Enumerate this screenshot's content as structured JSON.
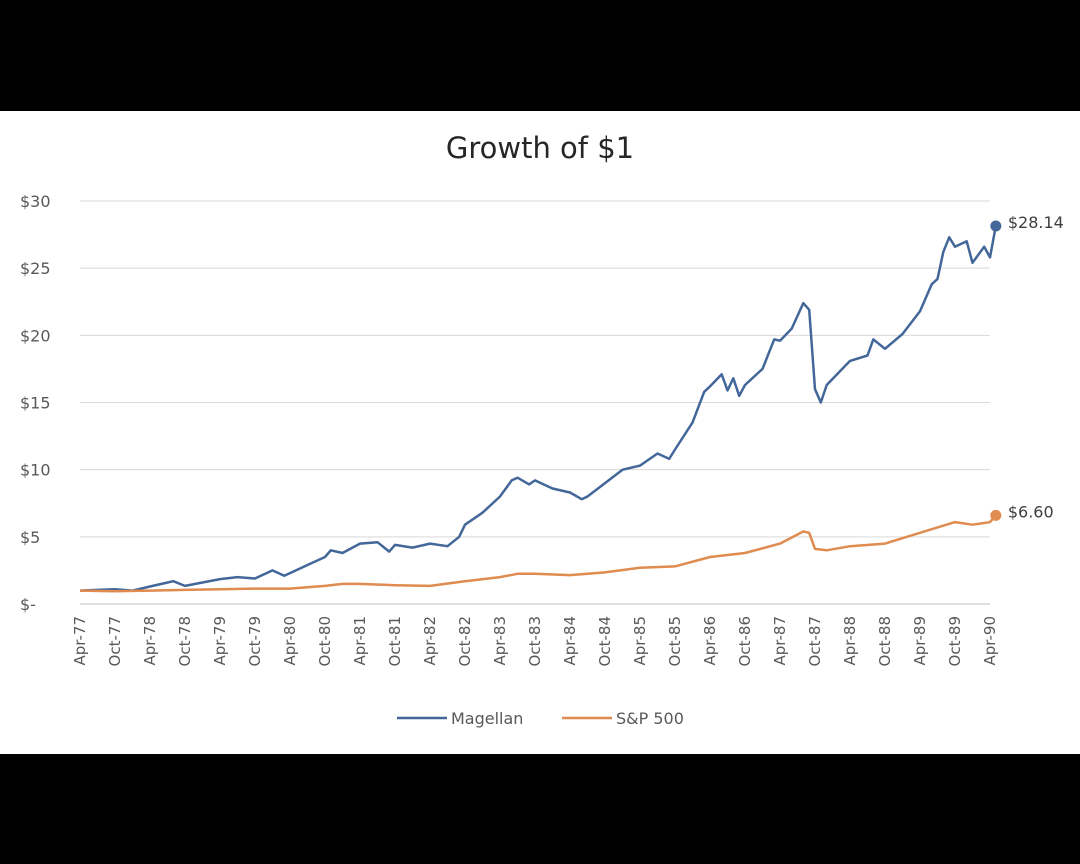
{
  "chart_data": {
    "type": "line",
    "title": "Growth of $1",
    "xlabel": "",
    "ylabel": "",
    "ylim": [
      0,
      30
    ],
    "yticks": [
      0,
      5,
      10,
      15,
      20,
      25,
      30
    ],
    "ytick_labels": [
      "$-",
      "$5",
      "$10",
      "$15",
      "$20",
      "$25",
      "$30"
    ],
    "x_tick_labels": [
      "Apr-77",
      "Oct-77",
      "Apr-78",
      "Oct-78",
      "Apr-79",
      "Oct-79",
      "Apr-80",
      "Oct-80",
      "Apr-81",
      "Oct-81",
      "Apr-82",
      "Oct-82",
      "Apr-83",
      "Oct-83",
      "Apr-84",
      "Oct-84",
      "Apr-85",
      "Oct-85",
      "Apr-86",
      "Oct-86",
      "Apr-87",
      "Oct-87",
      "Apr-88",
      "Oct-88",
      "Apr-89",
      "Oct-89",
      "Apr-90"
    ],
    "grid": "horizontal",
    "legend_position": "bottom",
    "series": [
      {
        "name": "Magellan",
        "color": "#44679a",
        "end_label": "$28.14",
        "points": [
          [
            "Apr-77",
            1.0
          ],
          [
            "Jul-77",
            1.05
          ],
          [
            "Oct-77",
            1.1
          ],
          [
            "Jan-78",
            1.0
          ],
          [
            "Apr-78",
            1.3
          ],
          [
            "Jul-78",
            1.6
          ],
          [
            "Aug-78",
            1.7
          ],
          [
            "Oct-78",
            1.35
          ],
          [
            "Jan-79",
            1.6
          ],
          [
            "Apr-79",
            1.85
          ],
          [
            "Jul-79",
            2.0
          ],
          [
            "Oct-79",
            1.9
          ],
          [
            "Jan-80",
            2.5
          ],
          [
            "Mar-80",
            2.1
          ],
          [
            "Apr-80",
            2.3
          ],
          [
            "Jul-80",
            2.9
          ],
          [
            "Oct-80",
            3.5
          ],
          [
            "Nov-80",
            4.0
          ],
          [
            "Jan-81",
            3.8
          ],
          [
            "Apr-81",
            4.5
          ],
          [
            "Jul-81",
            4.6
          ],
          [
            "Sep-81",
            3.9
          ],
          [
            "Oct-81",
            4.4
          ],
          [
            "Jan-82",
            4.2
          ],
          [
            "Apr-82",
            4.5
          ],
          [
            "Jul-82",
            4.3
          ],
          [
            "Sep-82",
            5.0
          ],
          [
            "Oct-82",
            5.9
          ],
          [
            "Jan-83",
            6.8
          ],
          [
            "Apr-83",
            8.0
          ],
          [
            "Jun-83",
            9.2
          ],
          [
            "Jul-83",
            9.4
          ],
          [
            "Sep-83",
            8.9
          ],
          [
            "Oct-83",
            9.2
          ],
          [
            "Jan-84",
            8.6
          ],
          [
            "Apr-84",
            8.3
          ],
          [
            "Jun-84",
            7.8
          ],
          [
            "Jul-84",
            8.0
          ],
          [
            "Oct-84",
            9.0
          ],
          [
            "Jan-85",
            10.0
          ],
          [
            "Apr-85",
            10.3
          ],
          [
            "Jul-85",
            11.2
          ],
          [
            "Sep-85",
            10.8
          ],
          [
            "Oct-85",
            11.5
          ],
          [
            "Jan-86",
            13.5
          ],
          [
            "Mar-86",
            15.8
          ],
          [
            "Apr-86",
            16.2
          ],
          [
            "Jun-86",
            17.1
          ],
          [
            "Jul-86",
            15.9
          ],
          [
            "Aug-86",
            16.8
          ],
          [
            "Sep-86",
            15.5
          ],
          [
            "Oct-86",
            16.3
          ],
          [
            "Jan-87",
            17.5
          ],
          [
            "Mar-87",
            19.7
          ],
          [
            "Apr-87",
            19.6
          ],
          [
            "Jun-87",
            20.5
          ],
          [
            "Aug-87",
            22.4
          ],
          [
            "Sep-87",
            21.9
          ],
          [
            "Oct-87",
            16.0
          ],
          [
            "Nov-87",
            15.0
          ],
          [
            "Dec-87",
            16.3
          ],
          [
            "Apr-88",
            18.1
          ],
          [
            "Jul-88",
            18.5
          ],
          [
            "Aug-88",
            19.7
          ],
          [
            "Oct-88",
            19.0
          ],
          [
            "Jan-89",
            20.1
          ],
          [
            "Apr-89",
            21.8
          ],
          [
            "Jun-89",
            23.8
          ],
          [
            "Jul-89",
            24.2
          ],
          [
            "Aug-89",
            26.2
          ],
          [
            "Sep-89",
            27.3
          ],
          [
            "Oct-89",
            26.6
          ],
          [
            "Dec-89",
            27.0
          ],
          [
            "Jan-90",
            25.4
          ],
          [
            "Mar-90",
            26.6
          ],
          [
            "Apr-90",
            25.8
          ],
          [
            "May-90",
            28.14
          ]
        ]
      },
      {
        "name": "S&P 500",
        "color": "#e08b4f",
        "end_label": "$6.60",
        "points": [
          [
            "Apr-77",
            1.0
          ],
          [
            "Oct-77",
            0.95
          ],
          [
            "Apr-78",
            1.0
          ],
          [
            "Oct-78",
            1.05
          ],
          [
            "Apr-79",
            1.1
          ],
          [
            "Oct-79",
            1.15
          ],
          [
            "Apr-80",
            1.15
          ],
          [
            "Oct-80",
            1.35
          ],
          [
            "Jan-81",
            1.5
          ],
          [
            "Apr-81",
            1.5
          ],
          [
            "Oct-81",
            1.4
          ],
          [
            "Apr-82",
            1.35
          ],
          [
            "Oct-82",
            1.7
          ],
          [
            "Apr-83",
            2.0
          ],
          [
            "Jul-83",
            2.25
          ],
          [
            "Oct-83",
            2.25
          ],
          [
            "Apr-84",
            2.15
          ],
          [
            "Oct-84",
            2.35
          ],
          [
            "Apr-85",
            2.7
          ],
          [
            "Oct-85",
            2.8
          ],
          [
            "Apr-86",
            3.5
          ],
          [
            "Oct-86",
            3.8
          ],
          [
            "Apr-87",
            4.5
          ],
          [
            "Aug-87",
            5.4
          ],
          [
            "Sep-87",
            5.3
          ],
          [
            "Oct-87",
            4.1
          ],
          [
            "Dec-87",
            4.0
          ],
          [
            "Apr-88",
            4.3
          ],
          [
            "Oct-88",
            4.5
          ],
          [
            "Apr-89",
            5.3
          ],
          [
            "Oct-89",
            6.1
          ],
          [
            "Jan-90",
            5.9
          ],
          [
            "Apr-90",
            6.1
          ],
          [
            "May-90",
            6.6
          ]
        ]
      }
    ]
  }
}
